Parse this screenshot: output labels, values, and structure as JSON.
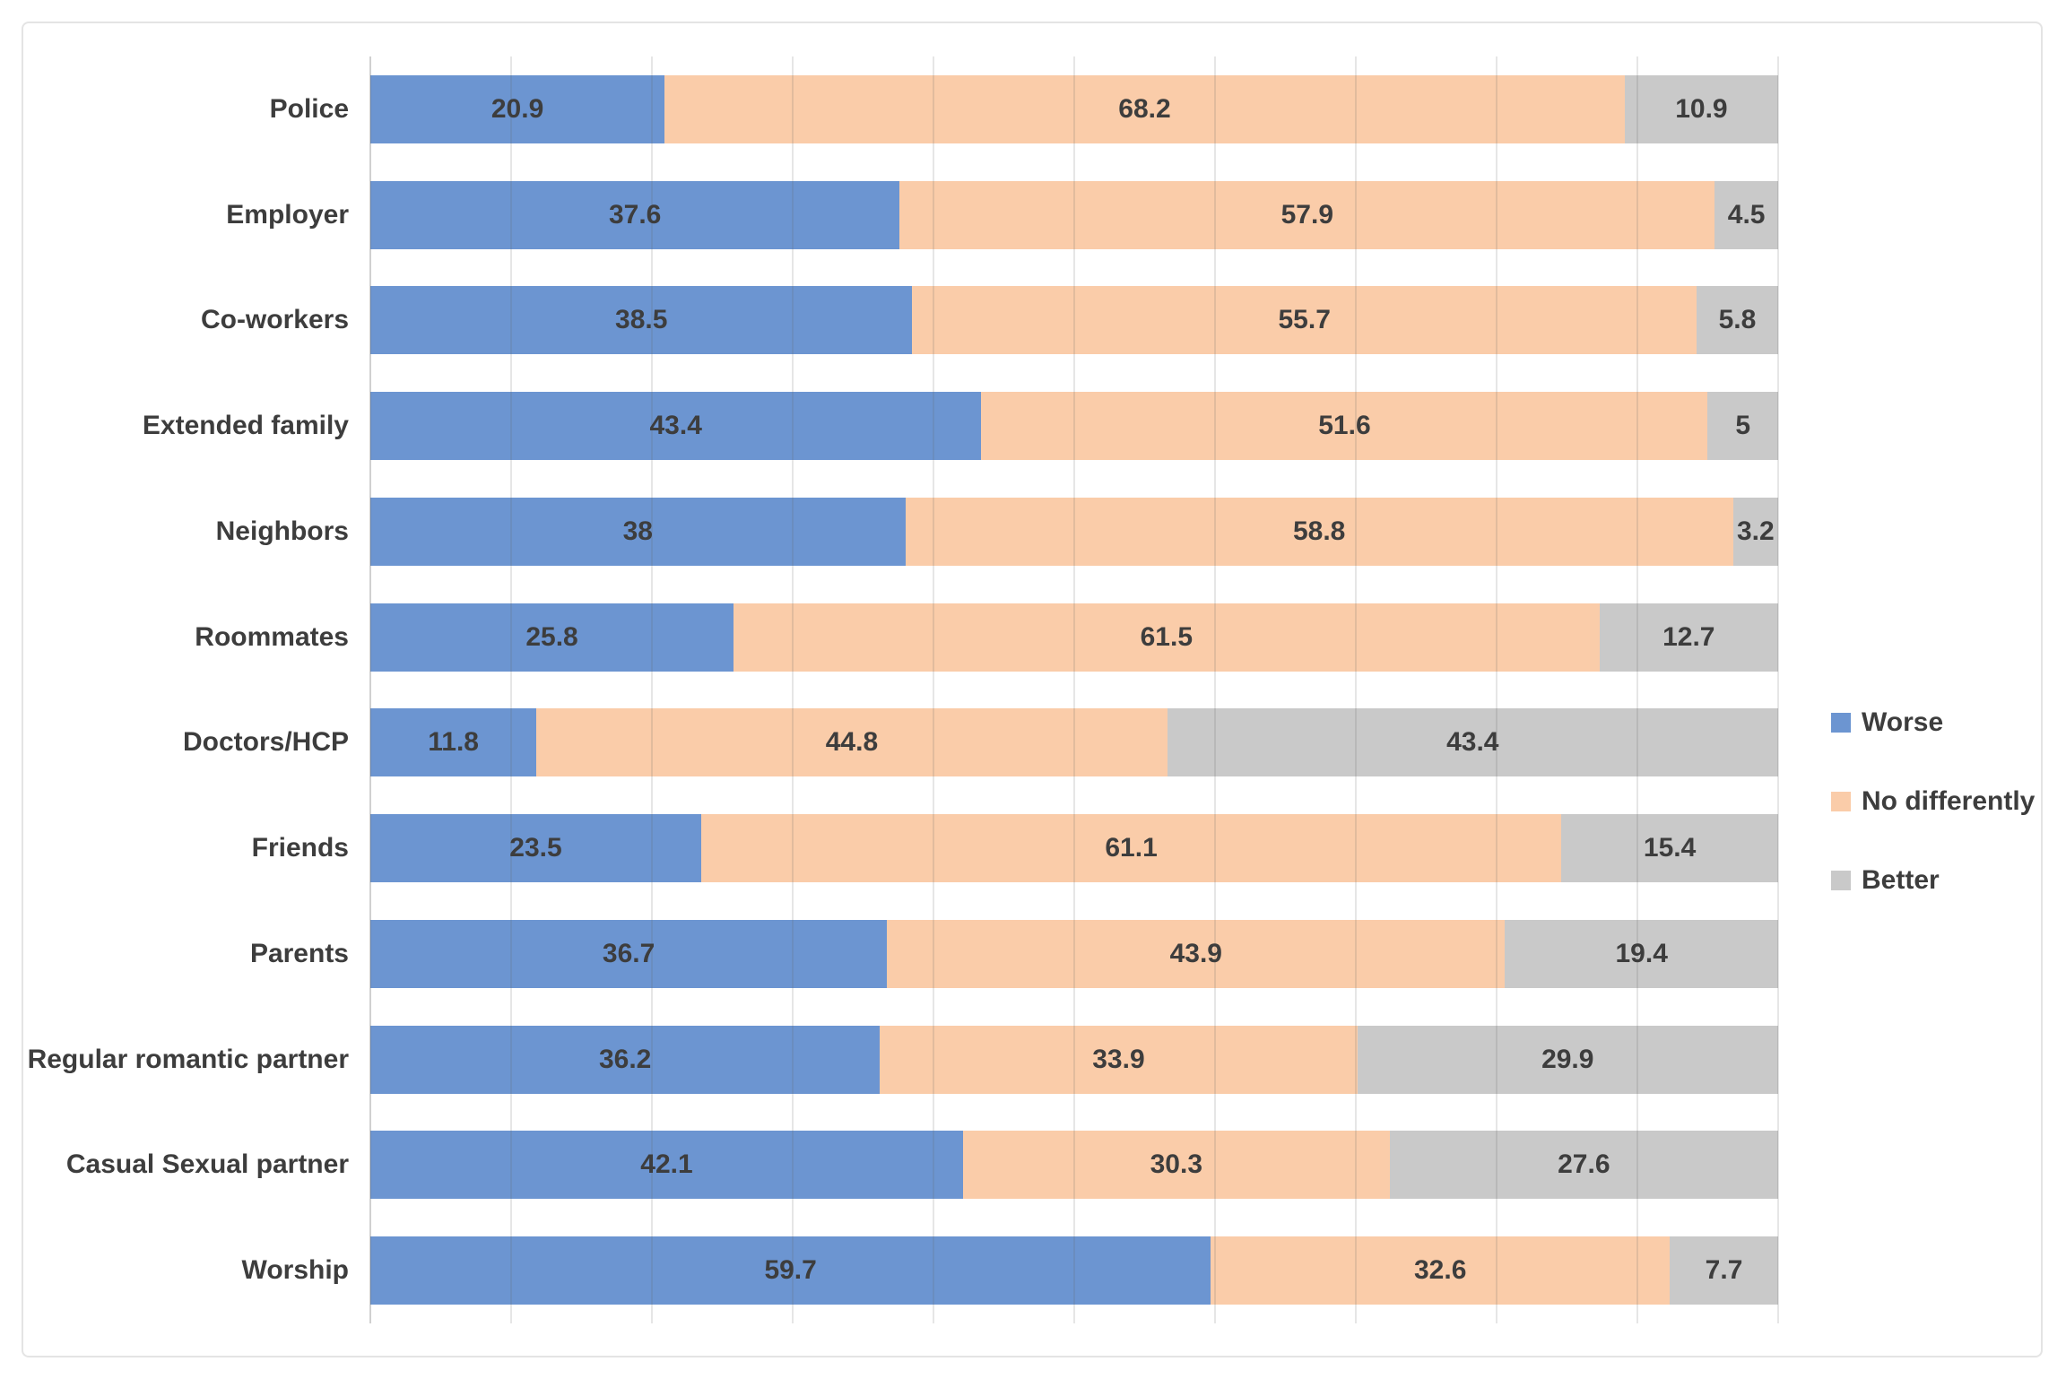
{
  "chart_data": {
    "type": "bar",
    "orientation": "horizontal",
    "stacked": true,
    "title": "",
    "xlabel": "",
    "ylabel": "",
    "xlim": [
      0,
      100
    ],
    "gridline_interval": 10,
    "grid": true,
    "legend_position": "right",
    "categories": [
      "Police",
      "Employer",
      "Co-workers",
      "Extended family",
      "Neighbors",
      "Roommates",
      "Doctors/HCP",
      "Friends",
      "Parents",
      "Regular romantic partner",
      "Casual Sexual partner",
      "Worship"
    ],
    "series": [
      {
        "name": "Worse",
        "color": "#6C95D1",
        "values": [
          20.9,
          37.6,
          38.5,
          43.4,
          38,
          25.8,
          11.8,
          23.5,
          36.7,
          36.2,
          42.1,
          59.7
        ]
      },
      {
        "name": "No differently",
        "color": "#FACCA9",
        "values": [
          68.2,
          57.9,
          55.7,
          51.6,
          58.8,
          61.5,
          44.8,
          61.1,
          43.9,
          33.9,
          30.3,
          32.6
        ]
      },
      {
        "name": "Better",
        "color": "#C9C9C9",
        "values": [
          10.9,
          4.5,
          5.8,
          5,
          3.2,
          12.7,
          43.4,
          15.4,
          19.4,
          29.9,
          27.6,
          7.7
        ]
      }
    ]
  },
  "legend": {
    "items": [
      {
        "label": "Worse",
        "color": "#6C95D1"
      },
      {
        "label": "No differently",
        "color": "#FACCA9"
      },
      {
        "label": "Better",
        "color": "#C9C9C9"
      }
    ]
  },
  "style_colors": {
    "value_label_text": "#3D3D3D",
    "category_label_text": "#3D3D3D",
    "chart_border": "#E4E4E4"
  }
}
